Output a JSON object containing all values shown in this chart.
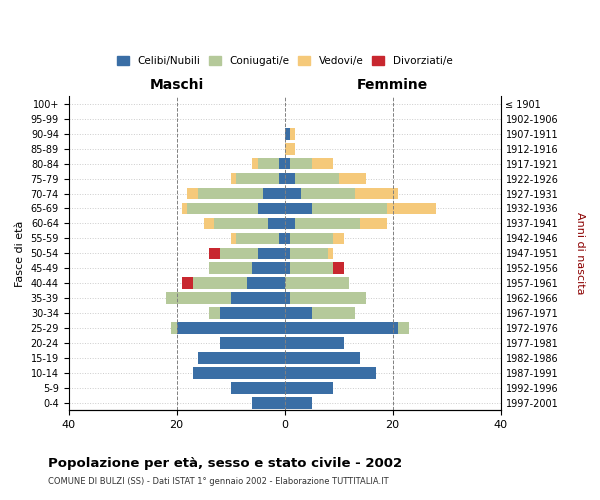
{
  "age_groups": [
    "0-4",
    "5-9",
    "10-14",
    "15-19",
    "20-24",
    "25-29",
    "30-34",
    "35-39",
    "40-44",
    "45-49",
    "50-54",
    "55-59",
    "60-64",
    "65-69",
    "70-74",
    "75-79",
    "80-84",
    "85-89",
    "90-94",
    "95-99",
    "100+"
  ],
  "birth_years": [
    "1997-2001",
    "1992-1996",
    "1987-1991",
    "1982-1986",
    "1977-1981",
    "1972-1976",
    "1967-1971",
    "1962-1966",
    "1957-1961",
    "1952-1956",
    "1947-1951",
    "1942-1946",
    "1937-1941",
    "1932-1936",
    "1927-1931",
    "1922-1926",
    "1917-1921",
    "1912-1916",
    "1907-1911",
    "1902-1906",
    "≤ 1901"
  ],
  "males": {
    "celibi": [
      6,
      10,
      17,
      16,
      12,
      20,
      12,
      10,
      7,
      6,
      5,
      1,
      3,
      5,
      4,
      1,
      1,
      0,
      0,
      0,
      0
    ],
    "coniugati": [
      0,
      0,
      0,
      0,
      0,
      1,
      2,
      12,
      10,
      8,
      7,
      8,
      10,
      13,
      12,
      8,
      4,
      0,
      0,
      0,
      0
    ],
    "vedovi": [
      0,
      0,
      0,
      0,
      0,
      0,
      0,
      0,
      0,
      0,
      0,
      1,
      2,
      1,
      2,
      1,
      1,
      0,
      0,
      0,
      0
    ],
    "divorziati": [
      0,
      0,
      0,
      0,
      0,
      0,
      0,
      0,
      2,
      0,
      2,
      0,
      0,
      0,
      0,
      0,
      0,
      0,
      0,
      0,
      0
    ]
  },
  "females": {
    "nubili": [
      5,
      9,
      17,
      14,
      11,
      21,
      5,
      1,
      0,
      1,
      1,
      1,
      2,
      5,
      3,
      2,
      1,
      0,
      1,
      0,
      0
    ],
    "coniugate": [
      0,
      0,
      0,
      0,
      0,
      2,
      8,
      14,
      12,
      8,
      7,
      8,
      12,
      14,
      10,
      8,
      4,
      0,
      0,
      0,
      0
    ],
    "vedove": [
      0,
      0,
      0,
      0,
      0,
      0,
      0,
      0,
      0,
      0,
      1,
      2,
      5,
      9,
      8,
      5,
      4,
      2,
      1,
      0,
      0
    ],
    "divorziate": [
      0,
      0,
      0,
      0,
      0,
      0,
      0,
      0,
      0,
      2,
      0,
      0,
      0,
      0,
      0,
      0,
      0,
      0,
      0,
      0,
      0
    ]
  },
  "colors": {
    "celibi": "#3A6EA5",
    "coniugati": "#B5C99A",
    "vedovi": "#F5C97A",
    "divorziati": "#C8272F"
  },
  "xlim": 40,
  "title": "Popolazione per età, sesso e stato civile - 2002",
  "subtitle": "COMUNE DI BULZI (SS) - Dati ISTAT 1° gennaio 2002 - Elaborazione TUTTITALIA.IT",
  "xlabel_left": "Maschi",
  "xlabel_right": "Femmine",
  "ylabel_left": "Fasce di età",
  "ylabel_right": "Anni di nascita",
  "legend_labels": [
    "Celibi/Nubili",
    "Coniugati/e",
    "Vedovi/e",
    "Divorziati/e"
  ],
  "background_color": "#ffffff",
  "grid_color": "#cccccc"
}
